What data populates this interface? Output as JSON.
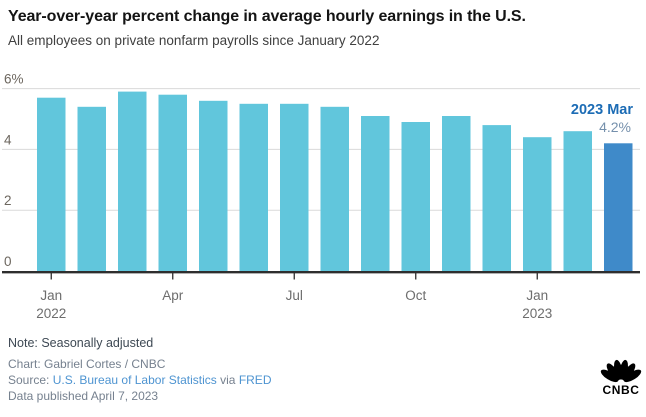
{
  "header": {
    "title": "Year-over-year percent change in average hourly earnings in the U.S.",
    "subtitle": "All employees on private nonfarm payrolls since January 2022"
  },
  "chart_data": {
    "type": "bar",
    "title": "Year-over-year percent change in average hourly earnings in the U.S.",
    "subtitle": "All employees on private nonfarm payrolls since January 2022",
    "categories": [
      "Jan 2022",
      "Feb 2022",
      "Mar 2022",
      "Apr 2022",
      "May 2022",
      "Jun 2022",
      "Jul 2022",
      "Aug 2022",
      "Sep 2022",
      "Oct 2022",
      "Nov 2022",
      "Dec 2022",
      "Jan 2023",
      "Feb 2023",
      "Mar 2023"
    ],
    "values": [
      5.7,
      5.4,
      5.9,
      5.8,
      5.6,
      5.5,
      5.5,
      5.4,
      5.1,
      4.9,
      5.1,
      4.8,
      4.4,
      4.6,
      4.2
    ],
    "unit": "%",
    "xlabel": "",
    "ylabel": "",
    "ylim": [
      0,
      6
    ],
    "grid": true,
    "legend": "none",
    "y_ticks": [
      {
        "value": 0,
        "label": "0"
      },
      {
        "value": 2,
        "label": "2"
      },
      {
        "value": 4,
        "label": "4"
      },
      {
        "value": 6,
        "label": "6%"
      }
    ],
    "x_ticks": [
      {
        "index": 0,
        "lines": [
          "Jan",
          "2022"
        ]
      },
      {
        "index": 3,
        "lines": [
          "Apr"
        ]
      },
      {
        "index": 6,
        "lines": [
          "Jul"
        ]
      },
      {
        "index": 9,
        "lines": [
          "Oct"
        ]
      },
      {
        "index": 12,
        "lines": [
          "Jan",
          "2023"
        ]
      }
    ],
    "highlight_index": 14,
    "annotation": {
      "label": "2023 Mar",
      "value": "4.2%"
    }
  },
  "colors": {
    "bar": "#61c6dc",
    "bar_highlight": "#3f8ac9",
    "annotation_label": "#1c6cb5",
    "annotation_value": "#7590ac",
    "grid": "#dadada",
    "axis": "#2e2e2e",
    "tick_text": "#6d6d6d",
    "y_tick_text": "#6d675f",
    "link": "#4e94d1"
  },
  "footer": {
    "note": "Note: Seasonally adjusted",
    "credit": "Chart: Gabriel Cortes / CNBC",
    "source_prefix": "Source: ",
    "source_link_bls": "U.S. Bureau of Labor Statistics",
    "source_via": " via ",
    "source_link_fred": "FRED",
    "published": "Data published April 7, 2023",
    "logo_text": "CNBC"
  }
}
